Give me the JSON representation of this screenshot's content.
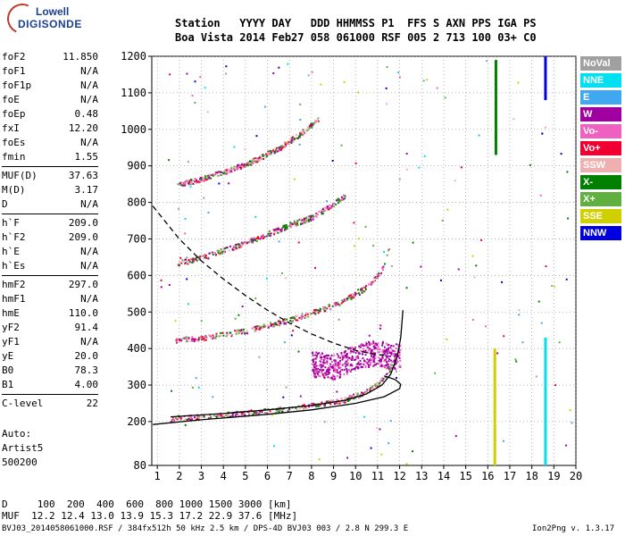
{
  "logo": {
    "line1": "Lowell",
    "line2": "DIGISONDE"
  },
  "header": {
    "line1": "Station   YYYY DAY   DDD HHMMSS P1  FFS S AXN PPS IGA PS",
    "line2": "Boa Vista 2014 Feb27 058 061000 RSF 005 2 713 100 03+ C0"
  },
  "params": [
    {
      "group": [
        {
          "name": "foF2",
          "value": "11.850"
        },
        {
          "name": "foF1",
          "value": "N/A"
        },
        {
          "name": "foF1p",
          "value": "N/A"
        },
        {
          "name": "foE",
          "value": "N/A"
        },
        {
          "name": "foEp",
          "value": "0.48"
        },
        {
          "name": "fxI",
          "value": "12.20"
        },
        {
          "name": "foEs",
          "value": "N/A"
        },
        {
          "name": "fmin",
          "value": "1.55"
        }
      ]
    },
    {
      "group": [
        {
          "name": "MUF(D)",
          "value": "37.63"
        },
        {
          "name": "M(D)",
          "value": "3.17"
        },
        {
          "name": "D",
          "value": "N/A"
        }
      ]
    },
    {
      "group": [
        {
          "name": "h`F",
          "value": "209.0"
        },
        {
          "name": "h`F2",
          "value": "209.0"
        },
        {
          "name": "h`E",
          "value": "N/A"
        },
        {
          "name": "h`Es",
          "value": "N/A"
        }
      ]
    },
    {
      "group": [
        {
          "name": "hmF2",
          "value": "297.0"
        },
        {
          "name": "hmF1",
          "value": "N/A"
        },
        {
          "name": "hmE",
          "value": "110.0"
        },
        {
          "name": "yF2",
          "value": "91.4"
        },
        {
          "name": "yF1",
          "value": "N/A"
        },
        {
          "name": "yE",
          "value": "20.0"
        },
        {
          "name": "B0",
          "value": "78.3"
        },
        {
          "name": "B1",
          "value": "4.00"
        }
      ]
    },
    {
      "group": [
        {
          "name": "C-level",
          "value": "22"
        }
      ]
    }
  ],
  "auto": [
    "Auto:",
    "Artist5",
    "500200"
  ],
  "dmuf": {
    "d_row": "D     100  200  400  600  800 1000 1500 3000 [km]",
    "muf_row": "MUF  12.2 12.4 13.0 13.9 15.3 17.2 22.9 37.6 [MHz]"
  },
  "footer": {
    "left": "BVJ03_2014058061000.RSF / 384fx512h 50 kHz 2.5 km / DPS-4D BVJ03 003 / 2.8 N 299.3 E",
    "right": "Ion2Png v. 1.3.17"
  },
  "legend": [
    {
      "label": "NoVal",
      "color": "#a0a0a0"
    },
    {
      "label": "NNE",
      "color": "#00e0f0"
    },
    {
      "label": "E",
      "color": "#40a8f0"
    },
    {
      "label": "W",
      "color": "#a000a0"
    },
    {
      "label": "Vo-",
      "color": "#f060c0"
    },
    {
      "label": "Vo+",
      "color": "#f00030"
    },
    {
      "label": "SSW",
      "color": "#f0b0b0"
    },
    {
      "label": "X-",
      "color": "#008000"
    },
    {
      "label": "X+",
      "color": "#60b040"
    },
    {
      "label": "SSE",
      "color": "#d0d000"
    },
    {
      "label": "NNW",
      "color": "#0000e0"
    }
  ],
  "chart_data": {
    "type": "scatter",
    "xlim": [
      0.75,
      20
    ],
    "ylim": [
      80,
      1200
    ],
    "x_ticks": [
      1,
      2,
      3,
      4,
      5,
      6,
      7,
      8,
      9,
      10,
      11,
      12,
      13,
      14,
      15,
      16,
      17,
      18,
      19,
      20
    ],
    "y_ticks": [
      80,
      200,
      300,
      400,
      500,
      600,
      700,
      800,
      900,
      1000,
      1100,
      1200
    ],
    "grid": true,
    "traces": [
      {
        "name": "o-trace",
        "points": [
          [
            1.6,
            210
          ],
          [
            3,
            215
          ],
          [
            5,
            225
          ],
          [
            7,
            238
          ],
          [
            8.5,
            250
          ],
          [
            9.5,
            262
          ],
          [
            10.5,
            285
          ],
          [
            11,
            305
          ],
          [
            11.5,
            340
          ],
          [
            11.8,
            375
          ]
        ]
      },
      {
        "name": "o-trace-2hop",
        "points": [
          [
            1.8,
            425
          ],
          [
            3,
            430
          ],
          [
            5,
            450
          ],
          [
            7,
            480
          ],
          [
            8,
            500
          ],
          [
            9,
            520
          ],
          [
            10,
            550
          ],
          [
            10.7,
            580
          ],
          [
            11.2,
            620
          ],
          [
            11.5,
            680
          ]
        ]
      },
      {
        "name": "o-trace-3hop",
        "points": [
          [
            1.9,
            635
          ],
          [
            3,
            650
          ],
          [
            5,
            690
          ],
          [
            7,
            740
          ],
          [
            8,
            760
          ],
          [
            8.8,
            790
          ],
          [
            9.5,
            820
          ]
        ]
      },
      {
        "name": "o-trace-4hop",
        "points": [
          [
            1.9,
            850
          ],
          [
            3,
            865
          ],
          [
            5,
            905
          ],
          [
            6.5,
            950
          ],
          [
            7.5,
            990
          ],
          [
            8.3,
            1030
          ]
        ]
      },
      {
        "name": "spread-F",
        "points": [
          [
            8,
            360
          ],
          [
            9,
            350
          ],
          [
            10,
            380
          ],
          [
            11,
            390
          ],
          [
            11.5,
            380
          ],
          [
            12,
            380
          ]
        ]
      }
    ],
    "model_curves": [
      {
        "name": "solid-profile-1",
        "points": [
          [
            1.6,
            213
          ],
          [
            4,
            222
          ],
          [
            6,
            232
          ],
          [
            8,
            244
          ],
          [
            9.5,
            258
          ],
          [
            10.5,
            276
          ],
          [
            11.2,
            300
          ],
          [
            11.6,
            330
          ],
          [
            11.9,
            380
          ],
          [
            12.05,
            430
          ],
          [
            12.15,
            505
          ]
        ]
      },
      {
        "name": "solid-profile-2",
        "points": [
          [
            0.8,
            192
          ],
          [
            3,
            205
          ],
          [
            6,
            220
          ],
          [
            8,
            232
          ],
          [
            10,
            250
          ],
          [
            11.3,
            268
          ],
          [
            12,
            290
          ],
          [
            12.05,
            302
          ],
          [
            11.8,
            315
          ],
          [
            11.3,
            325
          ]
        ]
      },
      {
        "name": "dashed-profile",
        "points": [
          [
            0.8,
            790
          ],
          [
            2,
            700
          ],
          [
            3,
            640
          ],
          [
            4,
            590
          ],
          [
            5,
            545
          ],
          [
            6,
            505
          ],
          [
            7,
            470
          ],
          [
            8,
            440
          ],
          [
            9,
            415
          ],
          [
            10,
            395
          ],
          [
            10.8,
            385
          ],
          [
            11.5,
            380
          ]
        ]
      }
    ],
    "vertical_bands": [
      {
        "x": 16.3,
        "from": 80,
        "to": 400,
        "color": "#d0d000"
      },
      {
        "x": 16.35,
        "from": 930,
        "to": 1190,
        "color": "#008000"
      },
      {
        "x": 18.6,
        "from": 80,
        "to": 430,
        "color": "#00e0f0"
      },
      {
        "x": 18.6,
        "from": 1080,
        "to": 1200,
        "color": "#0000e0"
      }
    ]
  }
}
